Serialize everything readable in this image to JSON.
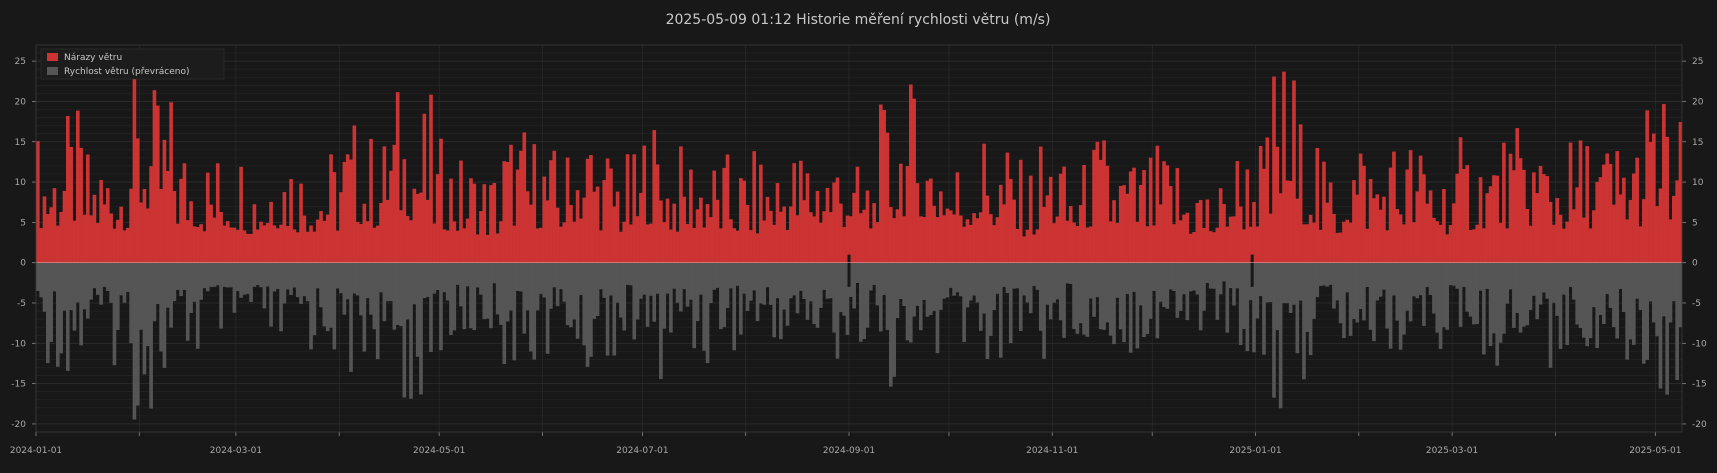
{
  "chart_data": {
    "type": "bar",
    "title": "2025-05-09  01:12  Historie měření rychlosti větru (m/s)",
    "xlabel": "",
    "ylabel": "",
    "x_range": [
      "2024-01-01",
      "2025-05-09"
    ],
    "ylim": [
      -21,
      27
    ],
    "y_ticks": [
      -20,
      -15,
      -10,
      -5,
      0,
      5,
      10,
      15,
      20,
      25
    ],
    "x_ticks": [
      "2024-01-01",
      "2024-03-01",
      "2024-05-01",
      "2024-07-01",
      "2024-09-01",
      "2024-11-01",
      "2025-01-01",
      "2025-03-01",
      "2025-05-01"
    ],
    "grid": true,
    "legend_position": "top-left",
    "colors": {
      "background": "#181818",
      "gust": "#cc3333",
      "speed": "#555555",
      "grid": "#2e2e2e",
      "axis": "#8a8a8a"
    },
    "series": [
      {
        "name": "Nárazy větru",
        "comment_note_excluded": null,
        "weekly_peak_dates": [
          "2024-01-01",
          "2024-01-08",
          "2024-01-15",
          "2024-01-22",
          "2024-01-29",
          "2024-02-05",
          "2024-02-12",
          "2024-02-19",
          "2024-02-26",
          "2024-03-04",
          "2024-03-11",
          "2024-03-18",
          "2024-03-25",
          "2024-04-01",
          "2024-04-08",
          "2024-04-15",
          "2024-04-22",
          "2024-04-29",
          "2024-05-06",
          "2024-05-13",
          "2024-05-20",
          "2024-05-27",
          "2024-06-03",
          "2024-06-10",
          "2024-06-17",
          "2024-06-24",
          "2024-07-01",
          "2024-07-08",
          "2024-07-15",
          "2024-07-22",
          "2024-07-29",
          "2024-08-05",
          "2024-08-12",
          "2024-08-19",
          "2024-08-26",
          "2024-09-02",
          "2024-09-09",
          "2024-09-16",
          "2024-09-23",
          "2024-09-30",
          "2024-10-07",
          "2024-10-14",
          "2024-10-21",
          "2024-10-28",
          "2024-11-04",
          "2024-11-11",
          "2024-11-18",
          "2024-11-25",
          "2024-12-02",
          "2024-12-09",
          "2024-12-16",
          "2024-12-23",
          "2024-12-30",
          "2025-01-06",
          "2025-01-13",
          "2025-01-20",
          "2025-01-27",
          "2025-02-03",
          "2025-02-10",
          "2025-02-17",
          "2025-02-24",
          "2025-03-03",
          "2025-03-10",
          "2025-03-17",
          "2025-03-24",
          "2025-03-31",
          "2025-04-07",
          "2025-04-14",
          "2025-04-21",
          "2025-04-28",
          "2025-05-05"
        ],
        "weekly_peak_values": [
          17,
          19,
          15,
          16,
          24,
          22,
          17,
          15,
          16,
          14,
          17,
          15,
          15,
          19,
          17,
          23,
          21,
          16,
          14,
          13,
          18,
          17,
          15,
          20,
          16,
          14,
          19,
          15,
          16,
          14,
          14,
          15,
          16,
          17,
          17,
          13,
          20,
          23,
          19,
          15,
          18,
          16,
          13,
          17,
          13,
          17,
          15,
          14,
          15,
          13,
          11,
          16,
          17,
          27,
          19,
          13,
          18,
          16,
          17,
          16,
          14,
          16,
          17,
          17,
          18,
          16,
          17,
          17,
          18,
          22,
          19
        ]
      },
      {
        "name": "Rychlost větru (převráceno)",
        "weekly_peak_dates": [
          "2024-01-01",
          "2024-01-08",
          "2024-01-15",
          "2024-01-22",
          "2024-01-29",
          "2024-02-05",
          "2024-02-12",
          "2024-02-19",
          "2024-02-26",
          "2024-03-04",
          "2024-03-11",
          "2024-03-18",
          "2024-03-25",
          "2024-04-01",
          "2024-04-08",
          "2024-04-15",
          "2024-04-22",
          "2024-04-29",
          "2024-05-06",
          "2024-05-13",
          "2024-05-20",
          "2024-05-27",
          "2024-06-03",
          "2024-06-10",
          "2024-06-17",
          "2024-06-24",
          "2024-07-01",
          "2024-07-08",
          "2024-07-15",
          "2024-07-22",
          "2024-07-29",
          "2024-08-05",
          "2024-08-12",
          "2024-08-19",
          "2024-08-26",
          "2024-09-02",
          "2024-09-09",
          "2024-09-16",
          "2024-09-23",
          "2024-09-30",
          "2024-10-07",
          "2024-10-14",
          "2024-10-21",
          "2024-10-28",
          "2024-11-04",
          "2024-11-11",
          "2024-11-18",
          "2024-11-25",
          "2024-12-02",
          "2024-12-09",
          "2024-12-16",
          "2024-12-23",
          "2024-12-30",
          "2025-01-06",
          "2025-01-13",
          "2025-01-20",
          "2025-01-27",
          "2025-02-03",
          "2025-02-10",
          "2025-02-17",
          "2025-02-24",
          "2025-03-03",
          "2025-03-10",
          "2025-03-17",
          "2025-03-24",
          "2025-03-31",
          "2025-04-07",
          "2025-04-14",
          "2025-04-21",
          "2025-04-28",
          "2025-05-05"
        ],
        "weekly_peak_values": [
          -13,
          -15,
          -12,
          -13,
          -20,
          -18,
          -13,
          -11,
          -12,
          -11,
          -13,
          -12,
          -12,
          -15,
          -13,
          -19,
          -17,
          -12,
          -11,
          -10,
          -14,
          -13,
          -12,
          -16,
          -12,
          -11,
          -15,
          -12,
          -13,
          -11,
          -11,
          -12,
          -12,
          -13,
          -13,
          -10,
          -16,
          -18,
          -15,
          -12,
          -14,
          -12,
          -10,
          -13,
          -10,
          -13,
          -12,
          -11,
          -12,
          -10,
          -9,
          -12,
          -13,
          -20,
          -15,
          -10,
          -14,
          -12,
          -13,
          -12,
          -11,
          -12,
          -13,
          -13,
          -14,
          -12,
          -13,
          -13,
          -14,
          -17,
          -15
        ]
      }
    ],
    "legend": [
      "Nárazy větru",
      "Rychlost větru (převráceno)"
    ]
  }
}
